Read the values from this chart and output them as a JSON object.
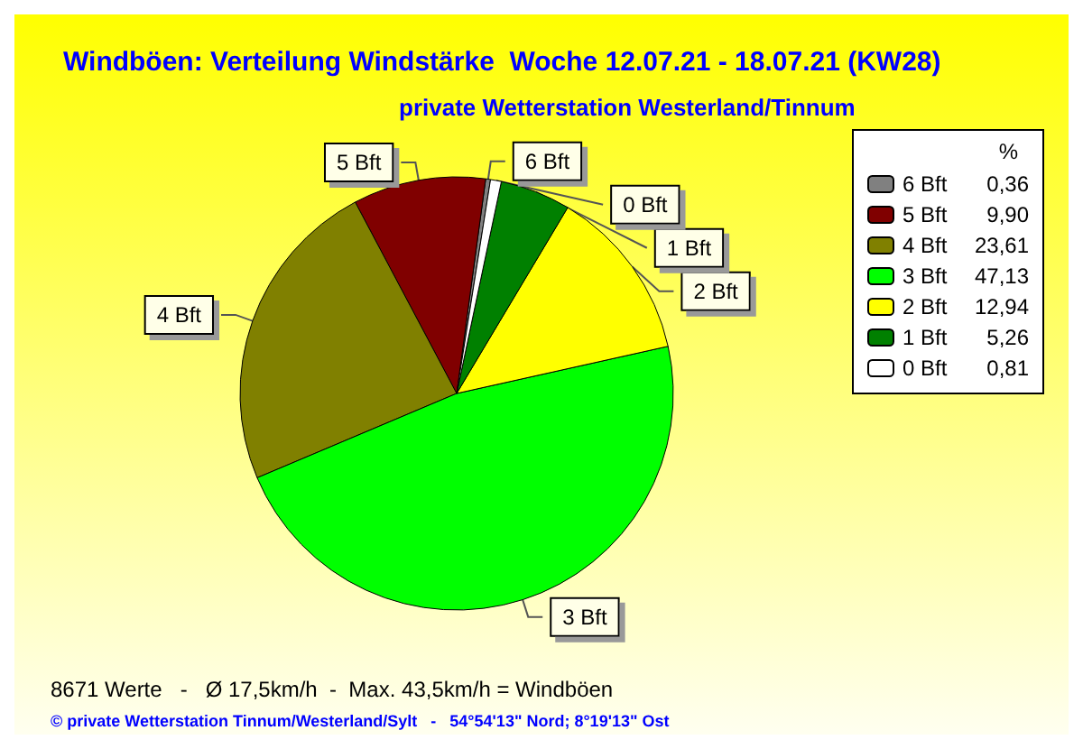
{
  "chart_data": {
    "type": "pie",
    "title": "Windböen: Verteilung Windstärke  Woche 12.07.21 - 18.07.21 (KW28)",
    "subtitle": "private Wetterstation Westerland/Tinnum",
    "legend_title": "%",
    "categories": [
      "6 Bft",
      "5 Bft",
      "4 Bft",
      "3 Bft",
      "2 Bft",
      "1 Bft",
      "0 Bft"
    ],
    "values": [
      0.36,
      9.9,
      23.61,
      47.13,
      12.94,
      5.26,
      0.81
    ],
    "value_labels": [
      "0,36",
      "9,90",
      "23,61",
      "47,13",
      "12,94",
      "5,26",
      "0,81"
    ],
    "colors": [
      "#808080",
      "#800000",
      "#808000",
      "#00ff00",
      "#ffff00",
      "#008000",
      "#ffffff"
    ],
    "legend": "right",
    "annotations": [
      "8671 Werte   -   Ø 17,5km/h  -  Max. 43,5km/h = Windböen",
      "© private Wetterstation Tinnum/Westerland/Sylt   -   54°54'13\" Nord; 8°19'13\" Ost"
    ]
  }
}
